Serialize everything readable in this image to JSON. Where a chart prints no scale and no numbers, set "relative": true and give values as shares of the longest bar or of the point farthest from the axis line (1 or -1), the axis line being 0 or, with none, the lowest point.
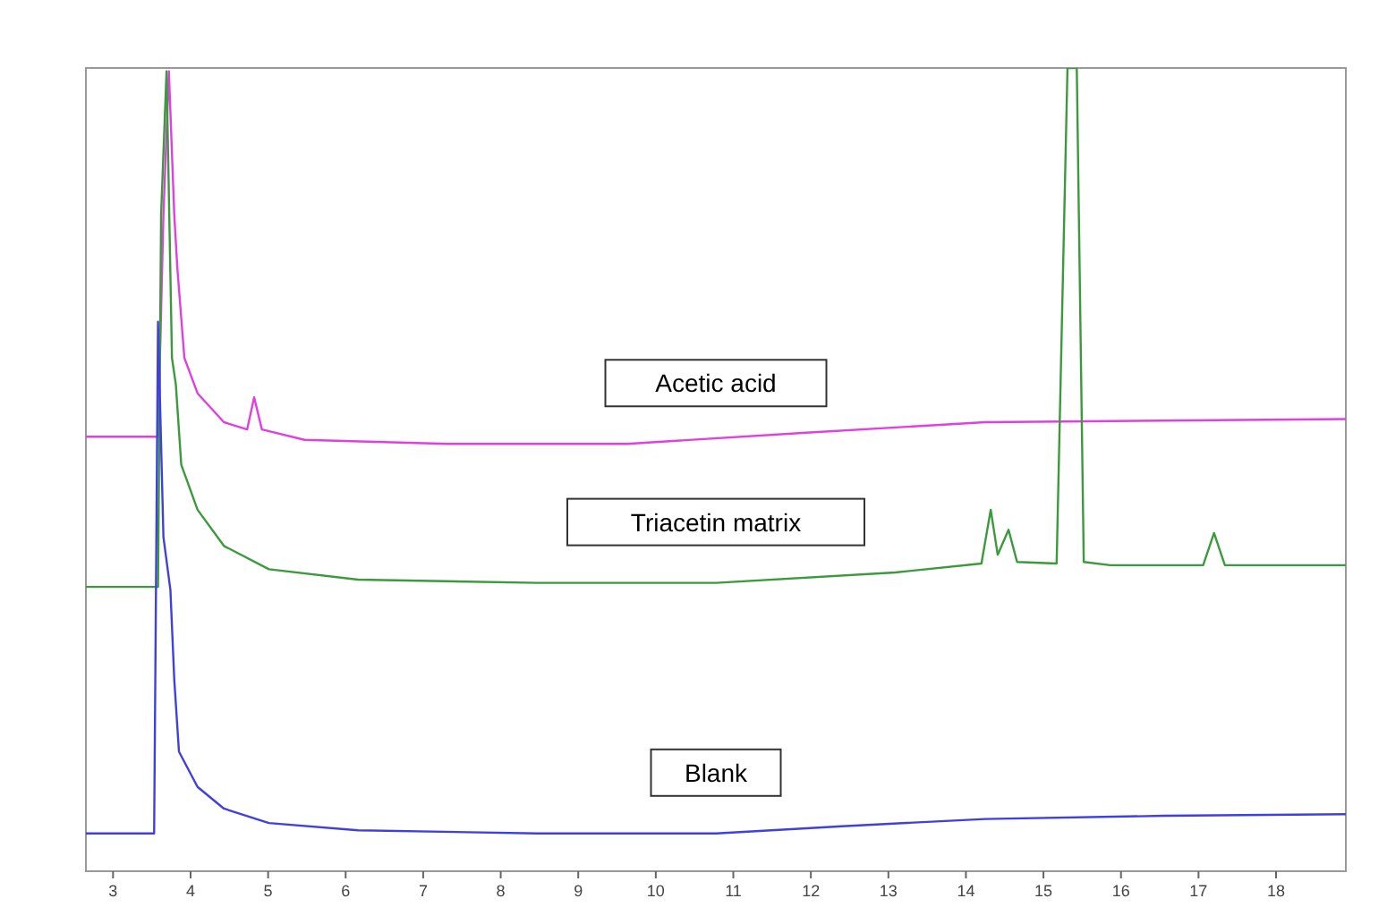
{
  "chart_data": {
    "type": "line",
    "relative": true,
    "xlim": [
      2.65,
      18.9
    ],
    "xticks": [
      3,
      4,
      5,
      6,
      7,
      8,
      9,
      10,
      11,
      12,
      13,
      14,
      15,
      16,
      17,
      18
    ],
    "grid": false,
    "marker": "none",
    "line_style": "solid",
    "series": [
      {
        "name": "Acetic acid",
        "color": "#e040e0",
        "x": [
          2.65,
          3.58,
          3.65,
          3.72,
          3.79,
          3.83,
          3.92,
          4.09,
          4.43,
          4.73,
          4.82,
          4.92,
          5.47,
          7.32,
          9.63,
          11.94,
          14.25,
          18.9
        ],
        "values": [
          0.541,
          0.541,
          0.817,
          0.996,
          0.817,
          0.75,
          0.639,
          0.595,
          0.559,
          0.55,
          0.59,
          0.55,
          0.537,
          0.532,
          0.532,
          0.546,
          0.559,
          0.563
        ]
      },
      {
        "name": "Triacetin matrix",
        "color": "#3c9a3c",
        "x": [
          2.65,
          3.58,
          3.62,
          3.69,
          3.76,
          3.81,
          3.88,
          4.09,
          4.43,
          5.01,
          6.16,
          8.47,
          10.78,
          13.09,
          14.2,
          14.32,
          14.41,
          14.55,
          14.66,
          15.17,
          15.31,
          15.43,
          15.52,
          15.86,
          17.06,
          17.2,
          17.34,
          18.9
        ],
        "values": [
          0.354,
          0.354,
          0.817,
          0.996,
          0.639,
          0.606,
          0.506,
          0.45,
          0.405,
          0.376,
          0.363,
          0.359,
          0.359,
          0.372,
          0.383,
          0.45,
          0.394,
          0.425,
          0.385,
          0.383,
          1,
          1,
          0.385,
          0.381,
          0.381,
          0.421,
          0.381,
          0.381
        ]
      },
      {
        "name": "Blank",
        "color": "#4040e0",
        "x": [
          2.65,
          3.53,
          3.58,
          3.65,
          3.74,
          3.79,
          3.85,
          4.09,
          4.43,
          5.01,
          6.16,
          8.47,
          10.78,
          12.4,
          14.25,
          16.56,
          18.9
        ],
        "values": [
          0.047,
          0.047,
          0.684,
          0.416,
          0.35,
          0.238,
          0.149,
          0.105,
          0.078,
          0.06,
          0.051,
          0.047,
          0.047,
          0.056,
          0.065,
          0.069,
          0.071
        ]
      }
    ]
  }
}
